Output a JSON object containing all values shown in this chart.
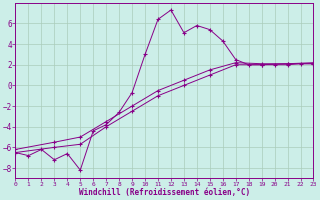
{
  "xlabel": "Windchill (Refroidissement éolien,°C)",
  "bg_color": "#cceee8",
  "line_color": "#880088",
  "grid_color": "#aaccbb",
  "xlim": [
    0,
    23
  ],
  "ylim": [
    -9,
    8
  ],
  "x_ticks": [
    0,
    1,
    2,
    3,
    4,
    5,
    6,
    7,
    8,
    9,
    10,
    11,
    12,
    13,
    14,
    15,
    16,
    17,
    18,
    19,
    20,
    21,
    22,
    23
  ],
  "y_ticks": [
    -8,
    -6,
    -4,
    -2,
    0,
    2,
    4,
    6
  ],
  "curve_x": [
    0,
    1,
    2,
    3,
    4,
    5,
    6,
    7,
    8,
    9,
    10,
    11,
    12,
    13,
    14,
    15,
    16,
    17,
    18,
    19,
    20,
    21,
    22,
    23
  ],
  "curve_y": [
    -6.5,
    -6.8,
    -6.2,
    -7.2,
    -6.6,
    -8.2,
    -4.4,
    -3.8,
    -2.6,
    -0.7,
    3.0,
    6.4,
    7.3,
    5.1,
    5.8,
    5.4,
    4.3,
    2.5,
    2.0,
    2.0,
    2.0,
    2.0,
    2.1,
    2.1
  ],
  "line1_x": [
    0,
    3,
    5,
    7,
    9,
    11,
    13,
    15,
    17,
    19,
    21,
    23
  ],
  "line1_y": [
    -6.5,
    -6.0,
    -5.7,
    -4.0,
    -2.5,
    -1.0,
    0.0,
    1.0,
    2.0,
    2.0,
    2.1,
    2.1
  ],
  "line2_x": [
    0,
    3,
    5,
    7,
    9,
    11,
    13,
    15,
    17,
    19,
    21,
    23
  ],
  "line2_y": [
    -6.2,
    -5.5,
    -5.0,
    -3.5,
    -2.0,
    -0.5,
    0.5,
    1.5,
    2.2,
    2.1,
    2.1,
    2.2
  ]
}
